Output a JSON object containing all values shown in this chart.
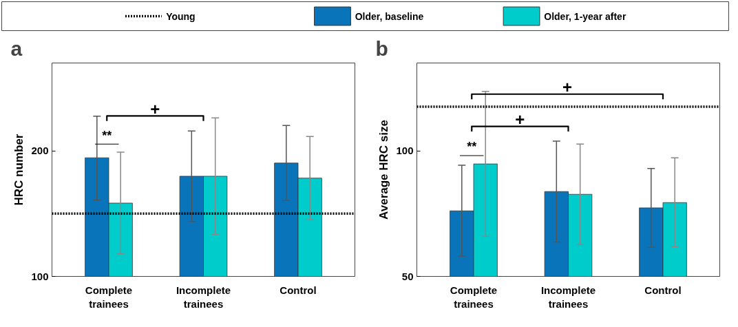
{
  "chart_data": [
    {
      "type": "bar",
      "title": "a",
      "ylabel": "HRC number",
      "categories": [
        "Complete\ntrainees",
        "Incomplete\ntrainees",
        "Control"
      ],
      "ylim": [
        100,
        270
      ],
      "yticks": [
        100,
        200
      ],
      "grid": false,
      "legend": "top",
      "series": [
        {
          "name": "Older, baseline",
          "color": "#0a74bb",
          "values": [
            194.5,
            179.8,
            190.3
          ],
          "errors": [
            [
              160.9,
              227.7
            ],
            [
              143.7,
              215.9
            ],
            [
              160.4,
              220.2
            ]
          ]
        },
        {
          "name": "Older, 1-year after",
          "color": "#00cccc",
          "values": [
            158.4,
            179.8,
            178.3
          ],
          "errors": [
            [
              117.9,
              199
            ],
            [
              133.4,
              226.2
            ],
            [
              145.2,
              211.5
            ]
          ]
        }
      ],
      "ref_lines": [
        {
          "axis": "y",
          "value": 150,
          "label": "Young",
          "color": "#000000",
          "line_style": "dotted"
        }
      ],
      "annotations": [
        "**",
        "+"
      ]
    },
    {
      "type": "bar",
      "title": "b",
      "ylabel": "Average HRC size",
      "categories": [
        "Complete\ntrainees",
        "Incomplete\ntrainees",
        "Control"
      ],
      "ylim": [
        50,
        135
      ],
      "yticks": [
        50,
        100
      ],
      "grid": false,
      "series": [
        {
          "color": "#0a74bb",
          "values": [
            76.1,
            83.8,
            77.3
          ],
          "errors": [
            [
              58.1,
              94.3
            ],
            [
              63.7,
              103.9
            ],
            [
              61.6,
              93
            ]
          ]
        },
        {
          "color": "#00cccc",
          "values": [
            94.8,
            82.7,
            79.4
          ],
          "errors": [
            [
              66,
              123.7
            ],
            [
              62.7,
              102.7
            ],
            [
              61.8,
              97.2
            ]
          ]
        }
      ],
      "ref_lines": [
        {
          "axis": "y",
          "value": 117.6,
          "color": "#000000",
          "line_style": "dotted"
        }
      ],
      "annotations": [
        "**",
        "+",
        "+"
      ]
    }
  ]
}
